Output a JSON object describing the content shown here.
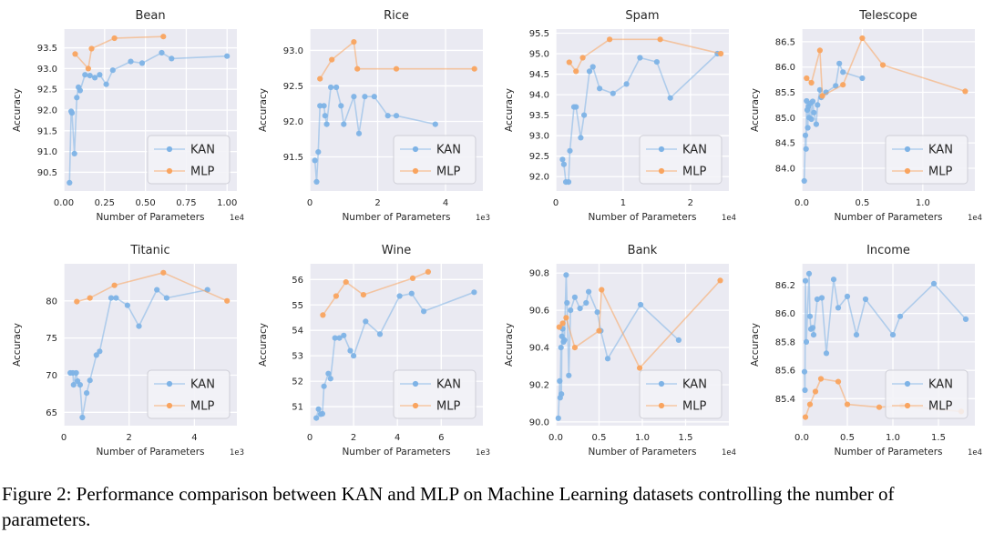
{
  "figure": {
    "caption": "Figure 2: Performance comparison between KAN and MLP on Machine Learning datasets controlling the number of parameters."
  },
  "colors": {
    "kan": "#7eb3e6",
    "mlp": "#f9a45f",
    "plot_background": "#eaeaf2",
    "gridline": "#ffffff",
    "text": "#262626",
    "legend_background": "#f2f2f7",
    "legend_border": "#cfcfd7"
  },
  "legend": {
    "entries": [
      "KAN",
      "MLP"
    ],
    "position": "lower right"
  },
  "chart_data": [
    {
      "type": "line",
      "title": "Bean",
      "xlabel": "Number of Parameters",
      "ylabel": "Accuracy",
      "x_offset_text": "1e4",
      "xlim": [
        0,
        1.06
      ],
      "ylim": [
        90.05,
        93.95
      ],
      "xticks": [
        0,
        0.25,
        0.5,
        0.75,
        1.0
      ],
      "xtick_labels": [
        "0.00",
        "0.25",
        "0.50",
        "0.75",
        "1.00"
      ],
      "yticks": [
        90.5,
        91.0,
        91.5,
        92.0,
        92.5,
        93.0,
        93.5
      ],
      "ytick_labels": [
        "90.5",
        "91.0",
        "91.5",
        "92.0",
        "92.5",
        "93.0",
        "93.5"
      ],
      "series": [
        {
          "name": "KAN",
          "color": "#7eb3e6",
          "x": [
            0.035,
            0.045,
            0.05,
            0.065,
            0.08,
            0.09,
            0.1,
            0.13,
            0.16,
            0.19,
            0.22,
            0.26,
            0.3,
            0.41,
            0.48,
            0.6,
            0.66,
            1.0
          ],
          "y": [
            90.25,
            91.97,
            91.93,
            90.95,
            92.3,
            92.55,
            92.47,
            92.85,
            92.83,
            92.78,
            92.85,
            92.62,
            92.96,
            93.17,
            93.13,
            93.38,
            93.24,
            93.3
          ]
        },
        {
          "name": "MLP",
          "color": "#f9a45f",
          "x": [
            0.07,
            0.15,
            0.17,
            0.31,
            0.61
          ],
          "y": [
            93.35,
            93.0,
            93.48,
            93.73,
            93.77
          ]
        }
      ]
    },
    {
      "type": "line",
      "title": "Rice",
      "xlabel": "Number of Parameters",
      "ylabel": "Accuracy",
      "x_offset_text": "1e3",
      "xlim": [
        0,
        5.1
      ],
      "ylim": [
        91.02,
        93.3
      ],
      "xticks": [
        0,
        2,
        4
      ],
      "xtick_labels": [
        "0",
        "2",
        "4"
      ],
      "yticks": [
        91.5,
        92.0,
        92.5,
        93.0
      ],
      "ytick_labels": [
        "91.5",
        "92.0",
        "92.5",
        "93.0"
      ],
      "series": [
        {
          "name": "KAN",
          "color": "#7eb3e6",
          "x": [
            0.15,
            0.2,
            0.25,
            0.3,
            0.42,
            0.45,
            0.5,
            0.62,
            0.78,
            0.92,
            1.0,
            1.3,
            1.45,
            1.62,
            1.9,
            2.3,
            2.55,
            3.7
          ],
          "y": [
            91.45,
            91.15,
            91.57,
            92.22,
            92.22,
            92.08,
            91.96,
            92.48,
            92.48,
            92.22,
            91.96,
            92.35,
            91.83,
            92.35,
            92.35,
            92.08,
            92.08,
            91.96
          ]
        },
        {
          "name": "MLP",
          "color": "#f9a45f",
          "x": [
            0.3,
            0.65,
            1.3,
            1.4,
            2.55,
            4.85
          ],
          "y": [
            92.6,
            92.87,
            93.12,
            92.74,
            92.74,
            92.74
          ]
        }
      ]
    },
    {
      "type": "line",
      "title": "Spam",
      "xlabel": "Number of Parameters",
      "ylabel": "Accuracy",
      "x_offset_text": "1e4",
      "xlim": [
        0,
        2.57
      ],
      "ylim": [
        91.65,
        95.6
      ],
      "xticks": [
        0,
        1,
        2
      ],
      "xtick_labels": [
        "0",
        "1",
        "2"
      ],
      "yticks": [
        92.0,
        92.5,
        93.0,
        93.5,
        94.0,
        94.5,
        95.0,
        95.5
      ],
      "ytick_labels": [
        "92.0",
        "92.5",
        "93.0",
        "93.5",
        "94.0",
        "94.5",
        "95.0",
        "95.5"
      ],
      "series": [
        {
          "name": "KAN",
          "color": "#7eb3e6",
          "x": [
            0.1,
            0.12,
            0.15,
            0.19,
            0.21,
            0.27,
            0.3,
            0.37,
            0.42,
            0.5,
            0.55,
            0.65,
            0.85,
            1.05,
            1.25,
            1.5,
            1.7,
            2.4
          ],
          "y": [
            92.42,
            92.3,
            91.87,
            91.87,
            92.63,
            93.7,
            93.7,
            92.95,
            93.5,
            94.57,
            94.68,
            94.15,
            94.03,
            94.26,
            94.9,
            94.8,
            93.92,
            95.0
          ]
        },
        {
          "name": "MLP",
          "color": "#f9a45f",
          "x": [
            0.2,
            0.3,
            0.4,
            0.8,
            1.55,
            2.45
          ],
          "y": [
            94.79,
            94.57,
            94.9,
            95.35,
            95.35,
            95.0
          ]
        }
      ]
    },
    {
      "type": "line",
      "title": "Telescope",
      "xlabel": "Number of Parameters",
      "ylabel": "Accuracy",
      "x_offset_text": "1e4",
      "xlim": [
        0,
        1.43
      ],
      "ylim": [
        83.55,
        86.75
      ],
      "xticks": [
        0,
        0.5,
        1.0
      ],
      "xtick_labels": [
        "0.0",
        "0.5",
        "1.0"
      ],
      "yticks": [
        84.0,
        84.5,
        85.0,
        85.5,
        86.0,
        86.5
      ],
      "ytick_labels": [
        "84.0",
        "84.5",
        "85.0",
        "85.5",
        "86.0",
        "86.5"
      ],
      "series": [
        {
          "name": "KAN",
          "color": "#7eb3e6",
          "x": [
            0.02,
            0.03,
            0.035,
            0.04,
            0.045,
            0.05,
            0.055,
            0.06,
            0.07,
            0.08,
            0.09,
            0.1,
            0.12,
            0.13,
            0.15,
            0.16,
            0.2,
            0.28,
            0.31,
            0.34,
            0.5
          ],
          "y": [
            83.75,
            84.65,
            84.38,
            85.33,
            85.15,
            84.8,
            85.22,
            85.0,
            85.28,
            84.97,
            85.32,
            85.1,
            84.87,
            85.25,
            85.55,
            85.4,
            85.5,
            85.63,
            86.07,
            85.9,
            85.78
          ]
        },
        {
          "name": "MLP",
          "color": "#f9a45f",
          "x": [
            0.04,
            0.08,
            0.15,
            0.17,
            0.34,
            0.5,
            0.67,
            1.35
          ],
          "y": [
            85.78,
            85.69,
            86.33,
            85.43,
            85.65,
            86.57,
            86.04,
            85.52
          ]
        }
      ]
    },
    {
      "type": "line",
      "title": "Titanic",
      "xlabel": "Number of Parameters",
      "ylabel": "Accuracy",
      "x_offset_text": "1e3",
      "xlim": [
        0,
        5.3
      ],
      "ylim": [
        63.2,
        85.0
      ],
      "xticks": [
        0,
        2,
        4
      ],
      "xtick_labels": [
        "0",
        "2",
        "4"
      ],
      "yticks": [
        65,
        70,
        75,
        80
      ],
      "ytick_labels": [
        "65",
        "70",
        "75",
        "80"
      ],
      "series": [
        {
          "name": "KAN",
          "color": "#7eb3e6",
          "x": [
            0.2,
            0.28,
            0.3,
            0.38,
            0.42,
            0.5,
            0.57,
            0.7,
            0.8,
            1.0,
            1.1,
            1.45,
            1.6,
            1.95,
            2.3,
            2.85,
            3.15,
            4.4
          ],
          "y": [
            70.3,
            70.3,
            68.7,
            70.3,
            69.2,
            68.7,
            64.3,
            67.6,
            69.3,
            72.7,
            73.2,
            80.4,
            80.4,
            79.4,
            76.6,
            81.5,
            80.4,
            81.5
          ]
        },
        {
          "name": "MLP",
          "color": "#f9a45f",
          "x": [
            0.4,
            0.8,
            1.55,
            3.05,
            5.0
          ],
          "y": [
            79.9,
            80.4,
            82.1,
            83.8,
            80.0
          ]
        }
      ]
    },
    {
      "type": "line",
      "title": "Wine",
      "xlabel": "Number of Parameters",
      "ylabel": "Accuracy",
      "x_offset_text": "1e3",
      "xlim": [
        0,
        7.9
      ],
      "ylim": [
        50.25,
        56.62
      ],
      "xticks": [
        0,
        2,
        4,
        6
      ],
      "xtick_labels": [
        "0",
        "2",
        "4",
        "6"
      ],
      "yticks": [
        51,
        52,
        53,
        54,
        55,
        56
      ],
      "ytick_labels": [
        "51",
        "52",
        "53",
        "54",
        "55",
        "56"
      ],
      "series": [
        {
          "name": "KAN",
          "color": "#7eb3e6",
          "x": [
            0.3,
            0.4,
            0.5,
            0.58,
            0.65,
            0.85,
            0.95,
            1.15,
            1.35,
            1.55,
            1.85,
            2.0,
            2.55,
            3.2,
            4.1,
            4.65,
            5.2,
            7.5
          ],
          "y": [
            50.55,
            50.9,
            50.7,
            50.72,
            51.8,
            52.3,
            52.1,
            53.7,
            53.7,
            53.8,
            53.2,
            53.0,
            54.35,
            53.85,
            55.35,
            55.45,
            54.75,
            55.5
          ]
        },
        {
          "name": "MLP",
          "color": "#f9a45f",
          "x": [
            0.6,
            1.2,
            1.65,
            2.45,
            4.7,
            5.4
          ],
          "y": [
            54.6,
            55.35,
            55.9,
            55.4,
            56.05,
            56.3
          ]
        }
      ]
    },
    {
      "type": "line",
      "title": "Bank",
      "xlabel": "Number of Parameters",
      "ylabel": "Accuracy",
      "x_offset_text": "1e4",
      "xlim": [
        0,
        2.0
      ],
      "ylim": [
        89.98,
        90.85
      ],
      "xticks": [
        0,
        0.5,
        1.0,
        1.5
      ],
      "xtick_labels": [
        "0.0",
        "0.5",
        "1.0",
        "1.5"
      ],
      "yticks": [
        90.0,
        90.2,
        90.4,
        90.6,
        90.8
      ],
      "ytick_labels": [
        "90.0",
        "90.2",
        "90.4",
        "90.6",
        "90.8"
      ],
      "series": [
        {
          "name": "KAN",
          "color": "#7eb3e6",
          "x": [
            0.03,
            0.045,
            0.05,
            0.06,
            0.065,
            0.07,
            0.08,
            0.09,
            0.1,
            0.12,
            0.13,
            0.15,
            0.17,
            0.22,
            0.28,
            0.35,
            0.38,
            0.48,
            0.52,
            0.6,
            0.98,
            1.42
          ],
          "y": [
            90.02,
            90.22,
            90.13,
            90.4,
            90.15,
            90.46,
            90.5,
            90.43,
            90.44,
            90.79,
            90.64,
            90.25,
            90.6,
            90.67,
            90.61,
            90.64,
            90.7,
            90.59,
            90.49,
            90.34,
            90.63,
            90.44
          ]
        },
        {
          "name": "MLP",
          "color": "#f9a45f",
          "x": [
            0.04,
            0.08,
            0.12,
            0.22,
            0.5,
            0.53,
            0.97,
            1.9
          ],
          "y": [
            90.51,
            90.53,
            90.56,
            90.4,
            90.49,
            90.71,
            90.29,
            90.76
          ]
        }
      ]
    },
    {
      "type": "line",
      "title": "Income",
      "xlabel": "Number of Parameters",
      "ylabel": "Accuracy",
      "x_offset_text": "1e4",
      "xlim": [
        0,
        1.9
      ],
      "ylim": [
        85.21,
        86.35
      ],
      "xticks": [
        0,
        0.5,
        1.0,
        1.5
      ],
      "xtick_labels": [
        "0.0",
        "0.5",
        "1.0",
        "1.5"
      ],
      "yticks": [
        85.4,
        85.6,
        85.8,
        86.0,
        86.2
      ],
      "ytick_labels": [
        "85.4",
        "85.6",
        "85.8",
        "86.0",
        "86.2"
      ],
      "series": [
        {
          "name": "KAN",
          "color": "#7eb3e6",
          "x": [
            0.03,
            0.035,
            0.04,
            0.05,
            0.08,
            0.09,
            0.1,
            0.12,
            0.13,
            0.17,
            0.22,
            0.27,
            0.35,
            0.4,
            0.5,
            0.6,
            0.7,
            1.0,
            1.08,
            1.45,
            1.8
          ],
          "y": [
            85.59,
            85.46,
            86.23,
            85.8,
            86.28,
            85.98,
            85.89,
            85.9,
            85.85,
            86.1,
            86.11,
            85.72,
            86.24,
            86.04,
            86.12,
            85.85,
            86.1,
            85.85,
            85.98,
            86.21,
            85.96
          ]
        },
        {
          "name": "MLP",
          "color": "#f9a45f",
          "x": [
            0.04,
            0.09,
            0.15,
            0.21,
            0.4,
            0.5,
            0.85,
            1.1,
            1.75
          ],
          "y": [
            85.27,
            85.36,
            85.45,
            85.54,
            85.52,
            85.36,
            85.34,
            85.35,
            85.31
          ]
        }
      ]
    }
  ]
}
